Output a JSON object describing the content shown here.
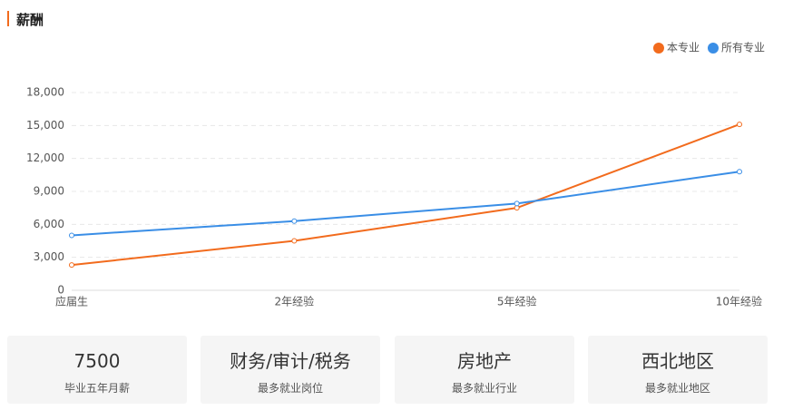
{
  "header": {
    "title": "薪酬"
  },
  "chart_data": {
    "type": "line",
    "categories": [
      "应届生",
      "2年经验",
      "5年经验",
      "10年经验"
    ],
    "series": [
      {
        "name": "本专业",
        "color": "#f26b1d",
        "values": [
          2300,
          4500,
          7500,
          15100
        ]
      },
      {
        "name": "所有专业",
        "color": "#3a8ee6",
        "values": [
          5000,
          6300,
          7900,
          10800
        ]
      }
    ],
    "ylim": [
      0,
      18000
    ],
    "yticks": [
      0,
      {
        "value": 3000,
        "label": "3,000"
      },
      {
        "value": 6000,
        "label": "6,000"
      },
      {
        "value": 9000,
        "label": "9,000"
      },
      {
        "value": 12000,
        "label": "12,000"
      },
      {
        "value": 15000,
        "label": "15,000"
      },
      {
        "value": 18000,
        "label": "18,000"
      }
    ],
    "grid": true,
    "legend": "top-right"
  },
  "cards": [
    {
      "value": "7500",
      "label": "毕业五年月薪"
    },
    {
      "value": "财务/审计/税务",
      "label": "最多就业岗位"
    },
    {
      "value": "房地产",
      "label": "最多就业行业"
    },
    {
      "value": "西北地区",
      "label": "最多就业地区"
    }
  ]
}
